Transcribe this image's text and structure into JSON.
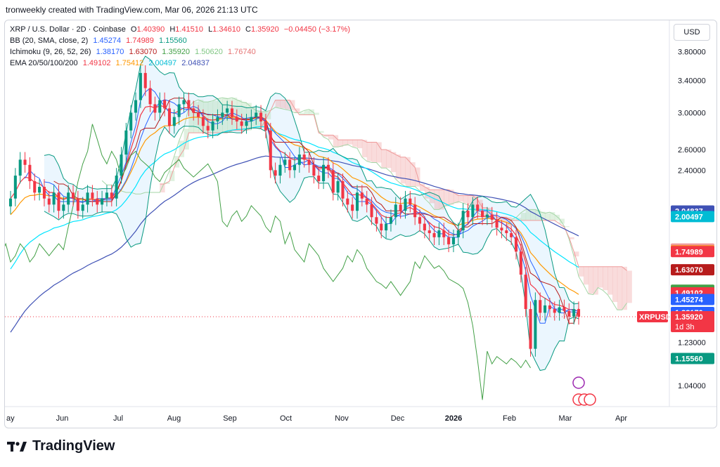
{
  "header": {
    "text": "tronweekly created with TradingView.com, Mar 06, 2026 21:13 UTC"
  },
  "legend": {
    "symbol": "XRP / U.S. Dollar · 2D · Coinbase",
    "o_label": "O",
    "o": "1.40390",
    "h_label": "H",
    "h": "1.41510",
    "l_label": "L",
    "l": "1.34610",
    "c_label": "C",
    "c": "1.35920",
    "change": "−0.04450 (−3.17%)",
    "bb_name": "BB (20, SMA, close, 2)",
    "bb_vals": [
      "1.45274",
      "1.74989",
      "1.15560"
    ],
    "ichi_name": "Ichimoku (9, 26, 52, 26)",
    "ichi_vals": [
      "1.38170",
      "1.63070",
      "1.35920",
      "1.50620",
      "1.76740"
    ],
    "ema_name": "EMA 20/50/100/200",
    "ema_vals": [
      "1.49102",
      "1.75412",
      "2.00497",
      "2.04837"
    ]
  },
  "currency_button": "USD",
  "logo_text": "TradingView",
  "colors": {
    "up": "#089981",
    "down": "#f23645",
    "bb_basis": "#2962ff",
    "bb_band": "#089981",
    "bb_fill": "#e3f2fd",
    "tenkan": "#2962ff",
    "kijun": "#b71c1c",
    "chikou": "#43a047",
    "span_a": "#a5d6a7",
    "span_b": "#ef9a9a",
    "ema20": "#f23645",
    "ema50": "#ff9800",
    "ema100": "#00e5ff",
    "ema200": "#3f51b5"
  },
  "chart_data": {
    "type": "candlestick",
    "title": "XRP / U.S. Dollar · 2D · Coinbase",
    "y_scale": "log",
    "ylim": [
      0.98,
      4.2
    ],
    "y_ticks": [
      "3.80000",
      "3.40000",
      "3.00000",
      "2.60000",
      "2.40000",
      "1.23000",
      "1.04000"
    ],
    "x_ticks": [
      "ay",
      "Jun",
      "Jul",
      "Aug",
      "Sep",
      "Oct",
      "Nov",
      "Dec",
      "2026",
      "Feb",
      "Mar",
      "Apr"
    ],
    "price_badges": [
      {
        "label": "2.04837",
        "value": 2.04837,
        "color": "#3f51b5"
      },
      {
        "label": "2.00497",
        "value": 2.00497,
        "color": "#00bcd4"
      },
      {
        "label": "1.76740",
        "value": 1.7674,
        "color": "#ef9a9a"
      },
      {
        "label": "1.75412",
        "value": 1.75412,
        "color": "#ff9800"
      },
      {
        "label": "1.74989",
        "value": 1.74989,
        "color": "#f23645"
      },
      {
        "label": "1.63070",
        "value": 1.6307,
        "color": "#b71c1c"
      },
      {
        "label": "1.50620",
        "value": 1.5062,
        "color": "#43a047"
      },
      {
        "label": "1.49102",
        "value": 1.49102,
        "color": "#f23645"
      },
      {
        "label": "1.45274",
        "value": 1.45274,
        "color": "#2962ff"
      },
      {
        "label": "1.38170",
        "value": 1.3817,
        "color": "#2962ff"
      },
      {
        "label": "1.35920",
        "value": 1.3592,
        "color": "#43a047"
      },
      {
        "label": "1.15560",
        "value": 1.1556,
        "color": "#089981"
      }
    ],
    "last_price": {
      "symbol": "XRPUSD",
      "value": "1.35920",
      "countdown": "1d 3h"
    },
    "closes": [
      2.15,
      2.35,
      2.5,
      2.45,
      2.3,
      2.2,
      2.25,
      2.15,
      2.1,
      2.2,
      2.05,
      2.1,
      2.2,
      2.15,
      2.05,
      2.1,
      2.2,
      2.15,
      2.1,
      2.15,
      2.2,
      2.15,
      2.35,
      2.55,
      2.8,
      3.0,
      3.15,
      3.5,
      3.3,
      3.1,
      3.0,
      3.15,
      3.05,
      2.85,
      2.95,
      3.1,
      3.15,
      3.05,
      3.0,
      2.95,
      2.85,
      2.8,
      2.9,
      2.95,
      3.0,
      3.05,
      2.95,
      2.9,
      2.85,
      2.9,
      2.95,
      3.0,
      2.9,
      2.8,
      2.4,
      2.35,
      2.45,
      2.5,
      2.4,
      2.45,
      2.55,
      2.5,
      2.45,
      2.35,
      2.3,
      2.45,
      2.4,
      2.2,
      2.3,
      2.15,
      2.1,
      2.05,
      2.2,
      2.15,
      2.1,
      2.0,
      1.95,
      1.9,
      1.95,
      2.0,
      2.1,
      2.05,
      2.15,
      2.1,
      2.0,
      1.95,
      1.9,
      1.88,
      1.85,
      1.9,
      1.85,
      1.8,
      1.85,
      1.9,
      2.05,
      2.0,
      2.1,
      2.05,
      2.0,
      2.02,
      1.98,
      1.92,
      1.9,
      1.88,
      1.85,
      1.75,
      1.6,
      1.4,
      1.2,
      1.45,
      1.38,
      1.42,
      1.4,
      1.38,
      1.41,
      1.39,
      1.36,
      1.4,
      1.359
    ]
  }
}
